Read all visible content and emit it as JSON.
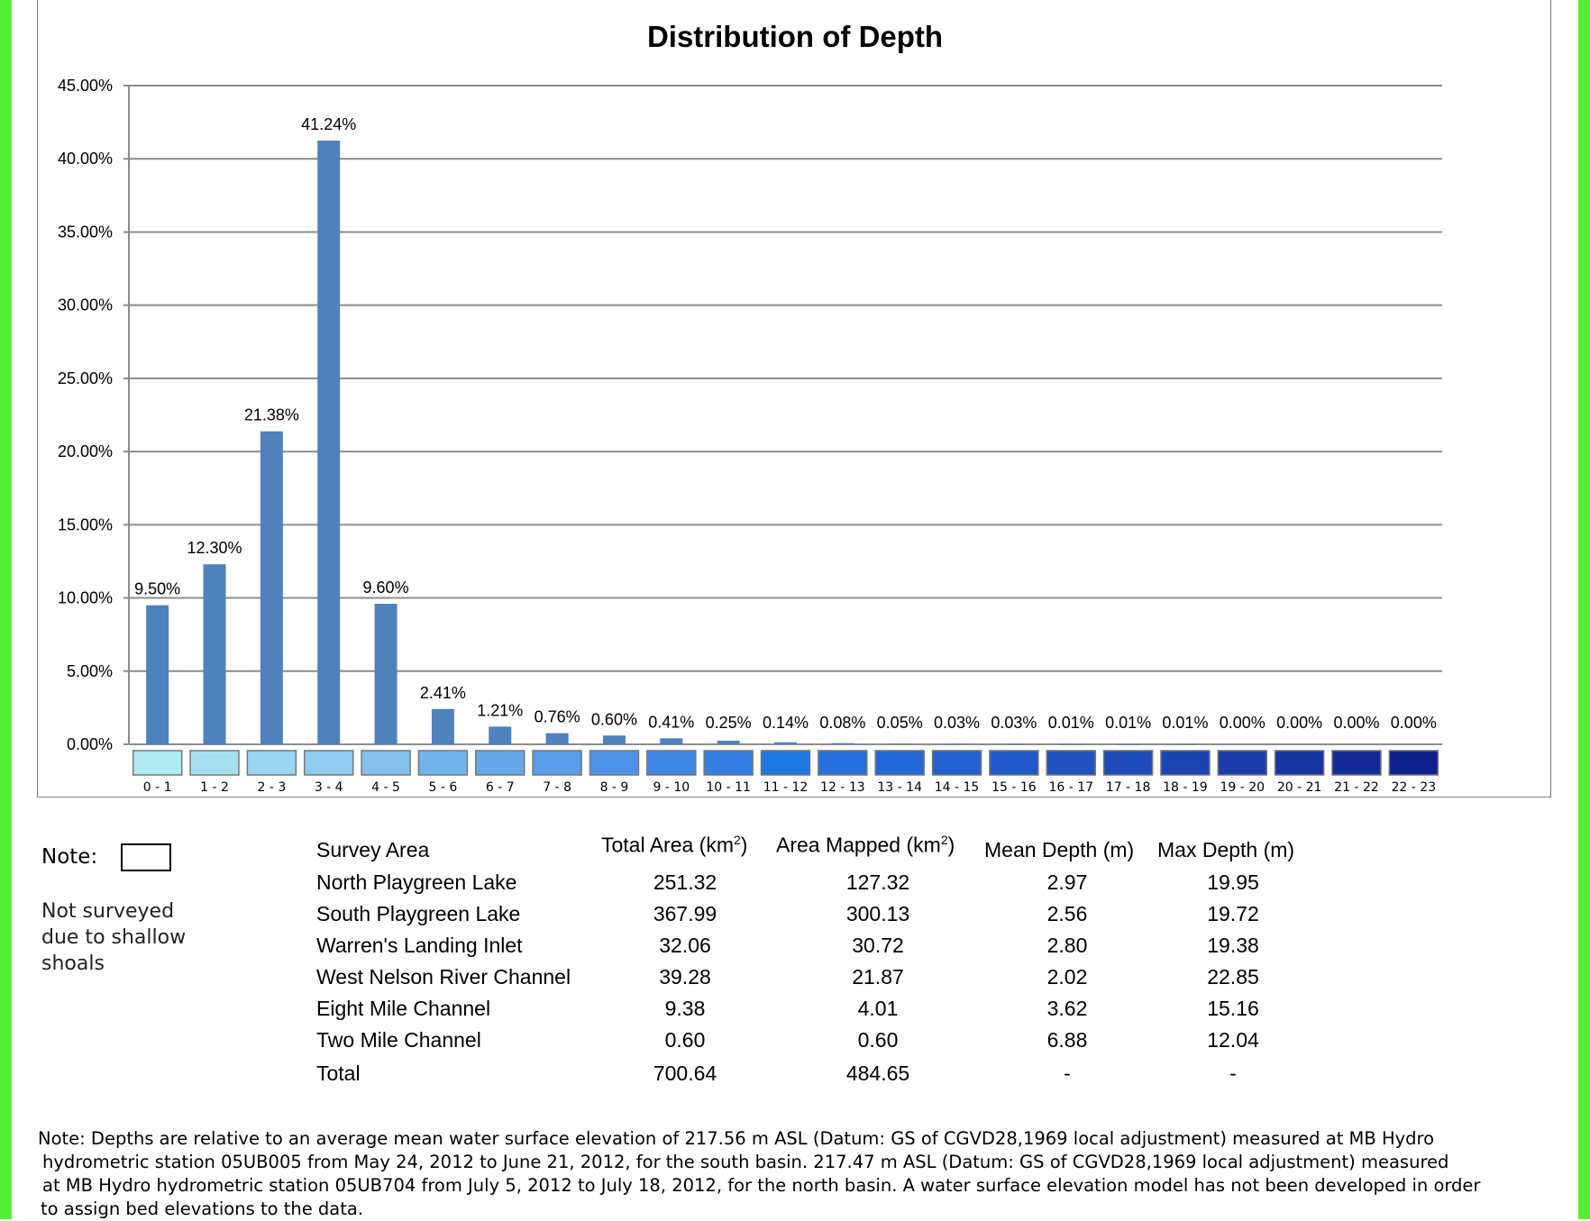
{
  "chart_data": {
    "type": "bar",
    "title": "Distribution of Depth",
    "xlabel": "",
    "ylabel": "",
    "ylim": [
      0,
      45
    ],
    "yticks": [
      "0.00%",
      "5.00%",
      "10.00%",
      "15.00%",
      "20.00%",
      "25.00%",
      "30.00%",
      "35.00%",
      "40.00%",
      "45.00%"
    ],
    "grid": true,
    "categories": [
      "0 - 1",
      "1 - 2",
      "2 - 3",
      "3 - 4",
      "4 - 5",
      "5 - 6",
      "6 - 7",
      "7 - 8",
      "8 - 9",
      "9 - 10",
      "10 - 11",
      "11 - 12",
      "12 - 13",
      "13 - 14",
      "14 - 15",
      "15 - 16",
      "16 - 17",
      "17 - 18",
      "18 - 19",
      "19 - 20",
      "20 - 21",
      "21 - 22",
      "22 - 23"
    ],
    "values": [
      9.5,
      12.3,
      21.38,
      41.24,
      9.6,
      2.41,
      1.21,
      0.76,
      0.6,
      0.41,
      0.25,
      0.14,
      0.08,
      0.05,
      0.03,
      0.03,
      0.01,
      0.01,
      0.01,
      0.0,
      0.0,
      0.0,
      0.0
    ],
    "data_labels": [
      "9.50%",
      "12.30%",
      "21.38%",
      "41.24%",
      "9.60%",
      "2.41%",
      "1.21%",
      "0.76%",
      "0.60%",
      "0.41%",
      "0.25%",
      "0.14%",
      "0.08%",
      "0.05%",
      "0.03%",
      "0.03%",
      "0.01%",
      "0.01%",
      "0.01%",
      "0.00%",
      "0.00%",
      "0.00%",
      "0.00%"
    ],
    "bar_color": "#4f81bd",
    "category_swatch_colors": [
      "#b0eaf2",
      "#a6e0f0",
      "#9bd5f0",
      "#8fcaf0",
      "#84c0ee",
      "#74b4ec",
      "#67a8ea",
      "#5a9de8",
      "#4d92e6",
      "#3f87e4",
      "#327ee2",
      "#1f78e0",
      "#2470dc",
      "#2467d6",
      "#2360cf",
      "#2259c8",
      "#2052c1",
      "#1e4bb9",
      "#1c44b2",
      "#1a3dab",
      "#1734a2",
      "#142a98",
      "#0f1f8c"
    ]
  },
  "legend": {
    "note_label": "Note:",
    "lines": [
      "Not surveyed",
      "due to shallow",
      "shoals"
    ]
  },
  "survey_table": {
    "headers": {
      "area": "Survey Area",
      "total_area": "Total Area (km",
      "area_mapped": "Area Mapped (km",
      "mean_depth": "Mean Depth (m)",
      "max_depth": "Max Depth (m)",
      "superscript": "2",
      "close_paren": ")"
    },
    "rows": [
      {
        "area": "North Playgreen Lake",
        "total": "251.32",
        "mapped": "127.32",
        "mean": "2.97",
        "max": "19.95"
      },
      {
        "area": "South Playgreen Lake",
        "total": "367.99",
        "mapped": "300.13",
        "mean": "2.56",
        "max": "19.72"
      },
      {
        "area": "Warren's Landing Inlet",
        "total": "32.06",
        "mapped": "30.72",
        "mean": "2.80",
        "max": "19.38"
      },
      {
        "area": "West Nelson River Channel",
        "total": "39.28",
        "mapped": "21.87",
        "mean": "2.02",
        "max": "22.85"
      },
      {
        "area": "Eight Mile Channel",
        "total": "9.38",
        "mapped": "4.01",
        "mean": "3.62",
        "max": "15.16"
      },
      {
        "area": "Two Mile Channel",
        "total": "0.60",
        "mapped": "0.60",
        "mean": "6.88",
        "max": "12.04"
      },
      {
        "area": "Total",
        "total": "700.64",
        "mapped": "484.65",
        "mean": "-",
        "max": "-"
      }
    ]
  },
  "footnote": {
    "lines": [
      "Note: Depths are relative to an average mean water surface elevation of 217.56 m ASL (Datum: GS of CGVD28,1969 local adjustment) measured at MB Hydro",
      "hydrometric station 05UB005 from May 24, 2012 to June 21, 2012, for the south basin. 217.47 m ASL (Datum: GS of CGVD28,1969 local adjustment) measured",
      "at MB Hydro hydrometric station 05UB704 from July 5, 2012 to July 18, 2012, for the north basin. A water surface elevation model has not been developed in order",
      "to assign bed elevations to the data."
    ]
  },
  "colors": {
    "border_green": "#55ee33",
    "gridline": "#8c8c8c",
    "frame": "#7a7a7a"
  }
}
